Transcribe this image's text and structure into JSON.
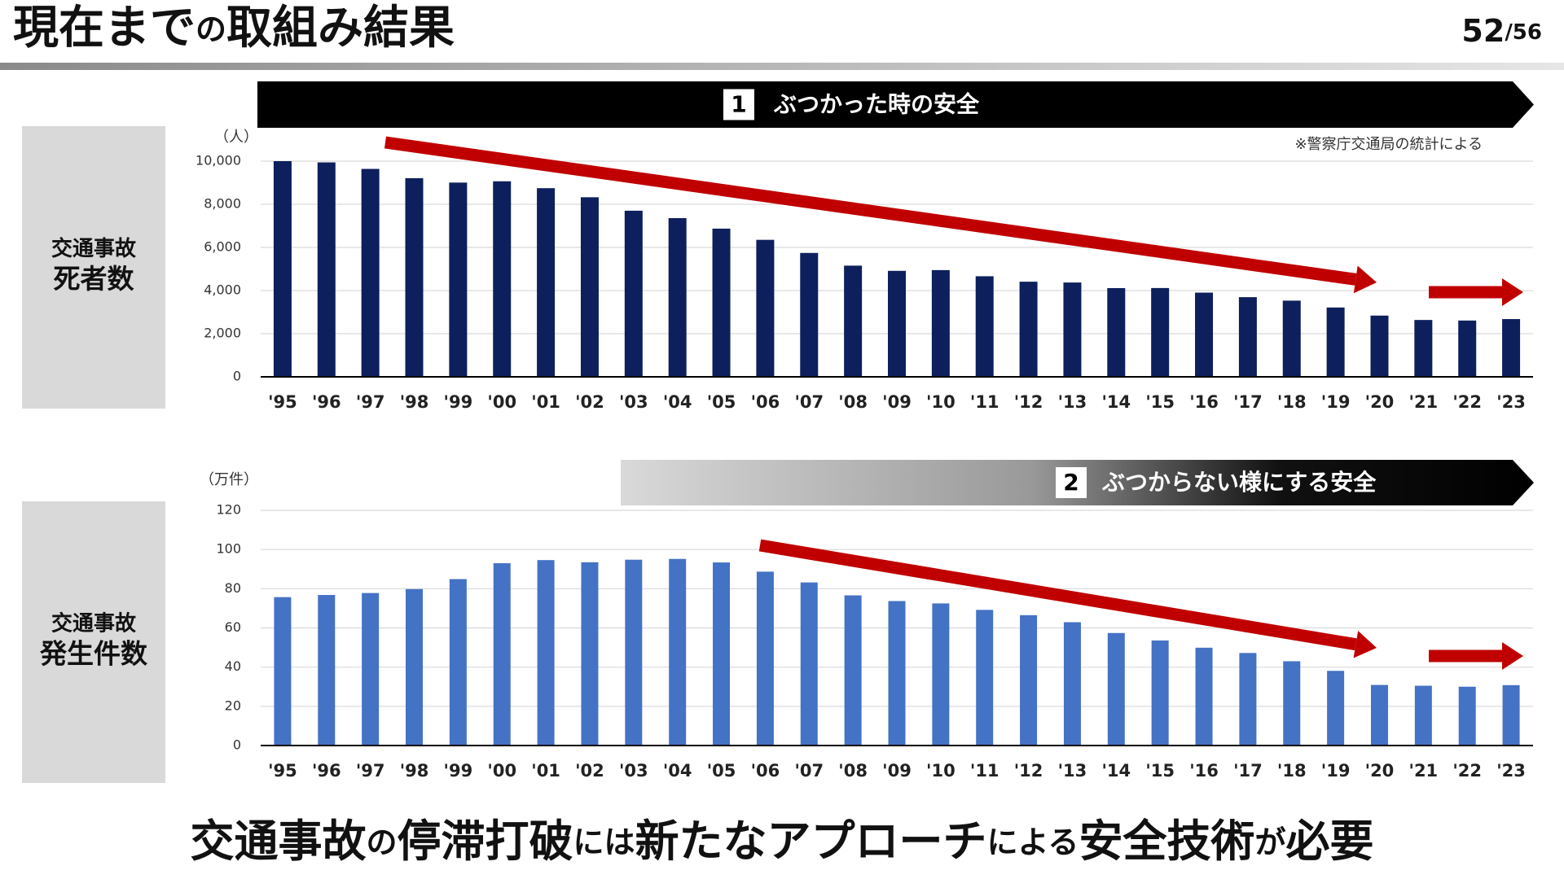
{
  "header": {
    "title": [
      "現在まで",
      "の",
      "取組み結果"
    ],
    "page": "52",
    "total": "/56"
  },
  "chart_data": [
    {
      "type": "bar",
      "unit_label": "（人）",
      "side_label": [
        "交通事故",
        "死者数"
      ],
      "banner": {
        "number": "1",
        "text": "ぶつかった時の安全"
      },
      "note": "※警察庁交通局の統計による",
      "categories": [
        "'95",
        "'96",
        "'97",
        "'98",
        "'99",
        "'00",
        "'01",
        "'02",
        "'03",
        "'04",
        "'05",
        "'06",
        "'07",
        "'08",
        "'09",
        "'10",
        "'11",
        "'12",
        "'13",
        "'14",
        "'15",
        "'16",
        "'17",
        "'18",
        "'19",
        "'20",
        "'21",
        "'22",
        "'23"
      ],
      "values": [
        10000,
        9942,
        9640,
        9211,
        9006,
        9066,
        8747,
        8326,
        7702,
        7358,
        6871,
        6352,
        5744,
        5155,
        4914,
        4948,
        4663,
        4411,
        4373,
        4113,
        4117,
        3904,
        3694,
        3532,
        3215,
        2839,
        2636,
        2610,
        2678
      ],
      "color": "#0d1f5c",
      "ylim": [
        0,
        10000
      ],
      "yticks": [
        0,
        {
          "value": 2000,
          "label": "2,000"
        },
        {
          "value": 4000,
          "label": "4,000"
        },
        {
          "value": 6000,
          "label": "6,000"
        },
        {
          "value": 8000,
          "label": "8,000"
        },
        {
          "value": 10000,
          "label": "10,000"
        }
      ],
      "grid": true
    },
    {
      "type": "bar",
      "unit_label": "（万件）",
      "side_label": [
        "交通事故",
        "発生件数"
      ],
      "banner": {
        "number": "2",
        "text": "ぶつからない様にする安全"
      },
      "categories": [
        "'95",
        "'96",
        "'97",
        "'98",
        "'99",
        "'00",
        "'01",
        "'02",
        "'03",
        "'04",
        "'05",
        "'06",
        "'07",
        "'08",
        "'09",
        "'10",
        "'11",
        "'12",
        "'13",
        "'14",
        "'15",
        "'16",
        "'17",
        "'18",
        "'19",
        "'20",
        "'21",
        "'22",
        "'23"
      ],
      "values": [
        75.7,
        76.8,
        77.8,
        79.8,
        84.9,
        93.0,
        94.6,
        93.5,
        94.8,
        95.2,
        93.4,
        88.7,
        83.2,
        76.6,
        73.7,
        72.5,
        69.2,
        66.5,
        62.9,
        57.4,
        53.6,
        49.9,
        47.2,
        43.0,
        38.1,
        30.9,
        30.5,
        30.0,
        30.8
      ],
      "color": "#4472c4",
      "ylim": [
        0,
        120
      ],
      "yticks": [
        0,
        20,
        40,
        60,
        80,
        100,
        120
      ],
      "grid": true
    }
  ],
  "footer": [
    "交通事故",
    "の",
    "停滞打破",
    "には",
    "新たなアプローチ",
    "による",
    "安全技術",
    "が",
    "必要"
  ]
}
